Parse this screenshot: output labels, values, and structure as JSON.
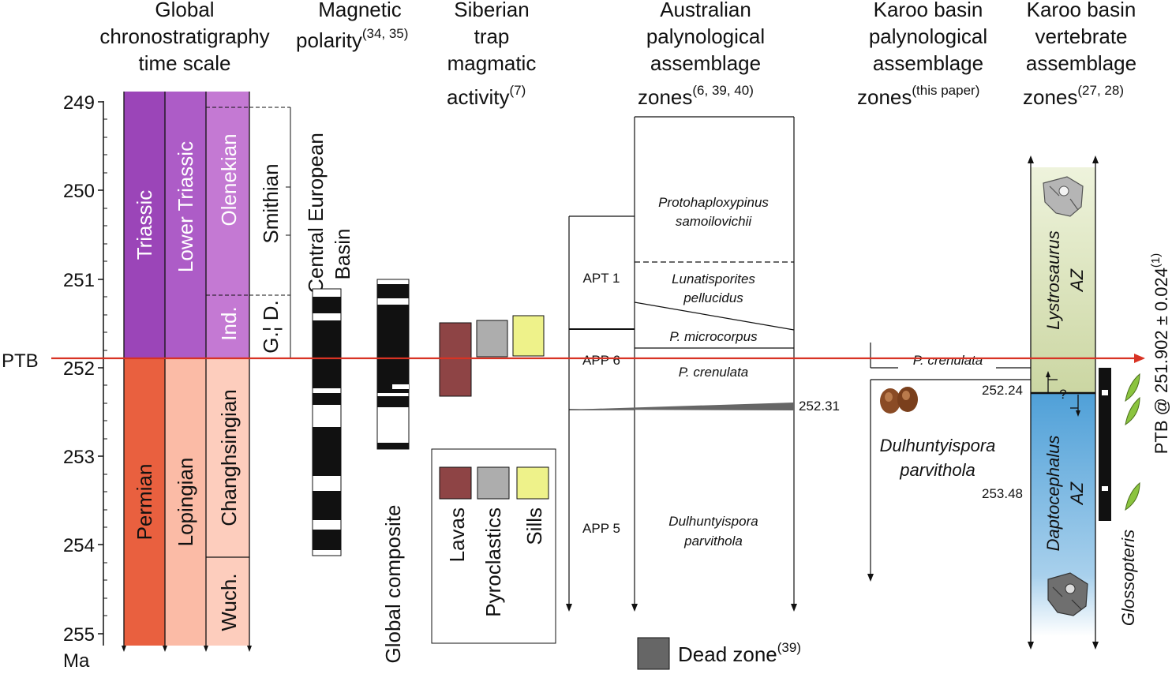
{
  "headers": {
    "global": [
      "Global",
      "chronostratigraphy",
      "time scale"
    ],
    "magnetic": [
      "Magnetic",
      "polarity"
    ],
    "magnetic_ref": "(34, 35)",
    "siberian": [
      "Siberian",
      "trap",
      "magmatic",
      "activity"
    ],
    "siberian_ref": "(7)",
    "australian": [
      "Australian",
      "palynological",
      "assemblage",
      "zones"
    ],
    "australian_ref": "(6, 39, 40)",
    "karoo_paly": [
      "Karoo basin",
      "palynological",
      "assemblage",
      "zones"
    ],
    "karoo_paly_ref": "(this paper)",
    "karoo_vert": [
      "Karoo basin",
      "vertebrate",
      "assemblage",
      "zones"
    ],
    "karoo_vert_ref": "(27, 28)"
  },
  "axis": {
    "ticks": [
      "249",
      "250",
      "251",
      "252",
      "253",
      "254",
      "255"
    ],
    "unit": "Ma"
  },
  "ptb_label": "PTB",
  "ptb_annotation": "PTB @ 251.902 ± 0.024",
  "ptb_annotation_ref": "(1)",
  "chrono": {
    "system_upper": "Triassic",
    "system_lower": "Permian",
    "series_upper": "Lower Triassic",
    "series_lower": "Lopingian",
    "stage_olenekian": "Olenekian",
    "stage_induan": "Ind.",
    "stage_changhsingian": "Changhsingian",
    "stage_wuch": "Wuch.",
    "substage_smithian": "Smithian",
    "substage_gd": "G.¦ D."
  },
  "magnetic": {
    "central_european": [
      "Central European",
      "Basin"
    ],
    "global_composite": "Global composite"
  },
  "siberian_legend": [
    "Lavas",
    "Pyroclastics",
    "Sills"
  ],
  "australian": {
    "apt1": "APT 1",
    "app6": "APP 6",
    "app5": "APP 5",
    "zone_proto": [
      "Protohaploxypinus",
      "samoilovichii"
    ],
    "zone_luna": [
      "Lunatisporites",
      "pellucidus"
    ],
    "zone_pmicro": "P. microcorpus",
    "zone_pcren": "P. crenulata",
    "zone_dulh": [
      "Dulhuntyispora",
      "parvithola"
    ],
    "age_dead": "252.31",
    "dead_zone": "Dead zone",
    "dead_zone_ref": "(39)"
  },
  "karoo_paly": {
    "pcren": "P. crenulata",
    "dulh": [
      "Dulhuntyispora",
      "parvithola"
    ],
    "age1": "252.24",
    "age2": "253.48"
  },
  "karoo_vert": {
    "lystro": [
      "Lystrosaurus",
      "AZ"
    ],
    "dapto": [
      "Daptocephalus",
      "AZ"
    ],
    "question": "?",
    "glossopteris": "Glossopteris"
  },
  "colors": {
    "triassic": "#9b45b8",
    "lower_triassic": "#ad5cc7",
    "olenekian": "#c479d3",
    "permian": "#e9603f",
    "lopingian": "#fbbba6",
    "changhsingian": "#fdcdbd",
    "ptb_line": "#d83324",
    "lavas": "#8e4445",
    "pyroclastics": "#adadad",
    "sills": "#eef28a",
    "lystrosaurus": "#d6dfb5",
    "daptocephalus": "#5fa9dc",
    "dead_zone": "#666666",
    "leaf": "#8bc43f"
  }
}
